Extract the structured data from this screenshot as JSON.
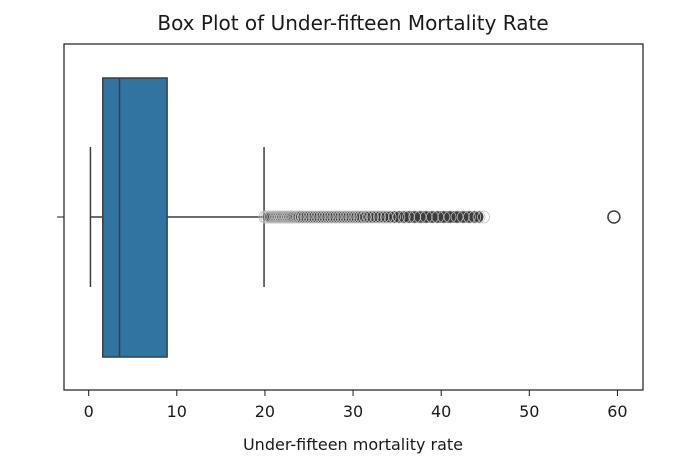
{
  "chart_data": {
    "type": "box",
    "title": "Box Plot of Under-fifteen Mortality Rate",
    "xlabel": "Under-fifteen mortality rate",
    "ylabel": "",
    "xlim": [
      -2.8,
      62.9
    ],
    "xticks": [
      0,
      10,
      20,
      30,
      40,
      50,
      60
    ],
    "grid": false,
    "orientation": "horizontal",
    "box": {
      "whisker_low": 0.2,
      "q1": 1.6,
      "median": 3.5,
      "q3": 8.9,
      "whisker_high": 19.9
    },
    "outliers_dense_range": [
      20.0,
      44.8
    ],
    "outliers": [
      20.0,
      20.2,
      20.4,
      20.6,
      20.8,
      21.0,
      21.2,
      21.4,
      21.6,
      21.8,
      22.0,
      22.2,
      22.4,
      22.6,
      22.8,
      23.0,
      23.2,
      23.5,
      23.8,
      24.1,
      24.4,
      24.7,
      25.0,
      25.3,
      25.6,
      25.9,
      26.2,
      26.5,
      26.8,
      27.1,
      27.4,
      27.7,
      28.0,
      28.3,
      28.6,
      28.9,
      29.2,
      29.5,
      29.8,
      30.1,
      30.4,
      30.7,
      31.0,
      31.4,
      31.8,
      32.2,
      32.6,
      33.0,
      33.4,
      33.8,
      34.2,
      34.7,
      35.2,
      35.8,
      36.3,
      37.0,
      37.6,
      38.3,
      39.0,
      39.6,
      40.3,
      41.0,
      41.8,
      42.5,
      43.2,
      43.8,
      44.3,
      44.8,
      59.6
    ],
    "box_color": "#3274a1",
    "line_color": "#3d3d3d"
  }
}
